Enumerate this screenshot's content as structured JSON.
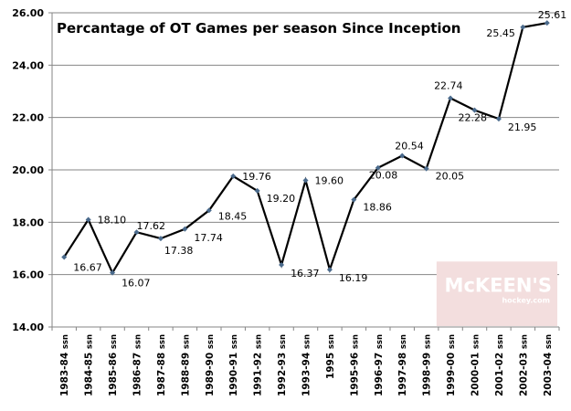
{
  "chart_data": {
    "type": "line",
    "title": "Percantage of OT Games per season Since Inception",
    "xlabel": "",
    "ylabel": "",
    "ylim": [
      14,
      26
    ],
    "yticks": [
      "14.00",
      "16.00",
      "18.00",
      "20.00",
      "22.00",
      "24.00",
      "26.00"
    ],
    "ytick_values": [
      14,
      16,
      18,
      20,
      22,
      24,
      26
    ],
    "grid": true,
    "legend": "none",
    "categories": [
      "1983-84 ssn",
      "1984-85 ssn",
      "1985-86 ssn",
      "1986-87 ssn",
      "1987-88 ssn",
      "1988-89 ssn",
      "1989-90 ssn",
      "1990-91 ssn",
      "1991-92 ssn",
      "1992-93 ssn",
      "1993-94 ssn",
      "1995 ssn",
      "1995-96 ssn",
      "1996-97 ssn",
      "1997-98 ssn",
      "1998-99 ssn",
      "1999-00 ssn",
      "2000-01 ssn",
      "2001-02 ssn",
      "2002-03 ssn",
      "2003-04 ssn"
    ],
    "series": [
      {
        "name": "OT Games %",
        "color": "#000000",
        "marker_color": "#4a6a8c",
        "values": [
          16.67,
          18.1,
          16.07,
          17.62,
          17.38,
          17.74,
          18.45,
          19.76,
          19.2,
          16.37,
          19.6,
          16.19,
          18.86,
          20.08,
          20.54,
          20.05,
          22.74,
          22.28,
          21.95,
          25.45,
          25.61
        ],
        "data_labels": [
          "16.67",
          "18.10",
          "16.07",
          "17.62",
          "17.38",
          "17.74",
          "18.45",
          "19.76",
          "19.20",
          "16.37",
          "19.60",
          "16.19",
          "18.86",
          "20.08",
          "20.54",
          "20.05",
          "22.74",
          "22.28",
          "21.95",
          "25.45",
          "25.61"
        ]
      }
    ],
    "watermark": {
      "brand": "McKEEN'S",
      "site": "hockey.com"
    }
  },
  "colors": {
    "grid": "#868686",
    "axis": "#868686",
    "line": "#000000",
    "marker": "#4a6a8c",
    "watermark_bg": "#f3dede"
  }
}
